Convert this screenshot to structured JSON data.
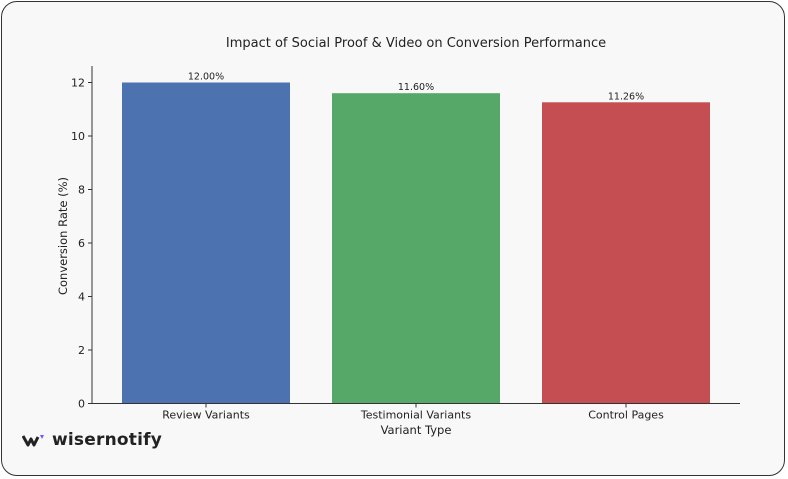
{
  "chart_data": {
    "type": "bar",
    "title": "Impact of Social Proof & Video on Conversion Performance",
    "xlabel": "Variant Type",
    "ylabel": "Conversion Rate (%)",
    "categories": [
      "Review Variants",
      "Testimonial Variants",
      "Control Pages"
    ],
    "values": [
      12.0,
      11.6,
      11.26
    ],
    "data_labels": [
      "12.00%",
      "11.60%",
      "11.26%"
    ],
    "colors": [
      "#4c72b0",
      "#55a868",
      "#c44e52"
    ],
    "ylim": [
      0,
      12.6
    ],
    "yticks": [
      0,
      2,
      4,
      6,
      8,
      10,
      12
    ],
    "grid": false,
    "legend": "none"
  },
  "branding": {
    "logo_text": "wisernotify",
    "accent": "#6b5cff"
  }
}
